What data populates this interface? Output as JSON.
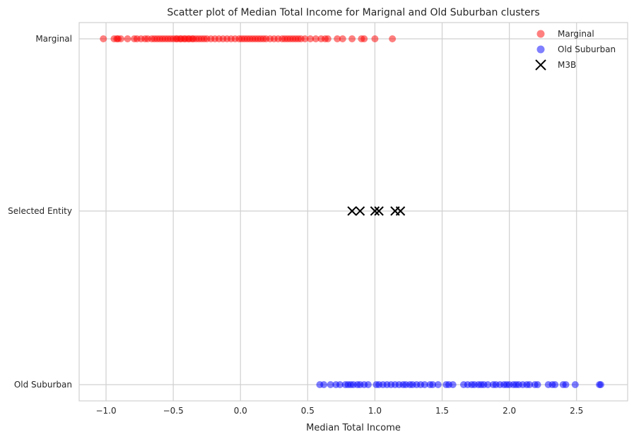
{
  "chart_data": {
    "type": "scatter",
    "title": "Scatter plot of Median Total Income for Marignal and Old Suburban clusters",
    "xlabel": "Median Total Income",
    "ylabel": "",
    "xlim": [
      -1.2,
      2.88
    ],
    "x_ticks": [
      -1.0,
      -0.5,
      0.0,
      0.5,
      1.0,
      1.5,
      2.0,
      2.5
    ],
    "x_tick_labels": [
      "−1.0",
      "−0.5",
      "0.0",
      "0.5",
      "1.0",
      "1.5",
      "2.0",
      "2.5"
    ],
    "y_categories": [
      "Marginal",
      "Selected Entity",
      "Old Suburban"
    ],
    "grid": true,
    "legend_position": "top-right",
    "series": [
      {
        "name": "Marginal",
        "color": "#ff0000",
        "marker": "circle",
        "alpha": 0.5,
        "y_category": "Marginal",
        "x": [
          -1.02,
          -0.94,
          -0.92,
          -0.91,
          -0.89,
          -0.84,
          -0.79,
          -0.77,
          -0.74,
          -0.71,
          -0.69,
          -0.66,
          -0.64,
          -0.62,
          -0.6,
          -0.58,
          -0.56,
          -0.54,
          -0.52,
          -0.5,
          -0.48,
          -0.47,
          -0.45,
          -0.44,
          -0.42,
          -0.41,
          -0.39,
          -0.38,
          -0.36,
          -0.35,
          -0.33,
          -0.31,
          -0.29,
          -0.27,
          -0.25,
          -0.22,
          -0.19,
          -0.16,
          -0.13,
          -0.1,
          -0.07,
          -0.04,
          -0.01,
          0.01,
          0.03,
          0.05,
          0.07,
          0.09,
          0.11,
          0.13,
          0.15,
          0.17,
          0.19,
          0.22,
          0.25,
          0.28,
          0.31,
          0.33,
          0.35,
          0.37,
          0.39,
          0.41,
          0.43,
          0.45,
          0.48,
          0.52,
          0.56,
          0.6,
          0.63,
          0.65,
          0.72,
          0.76,
          0.83,
          0.9,
          0.92,
          1.0,
          1.13
        ]
      },
      {
        "name": "Old Suburban",
        "color": "#0000ff",
        "marker": "circle",
        "alpha": 0.5,
        "y_category": "Old Suburban",
        "x": [
          0.59,
          0.62,
          0.67,
          0.71,
          0.74,
          0.78,
          0.8,
          0.82,
          0.84,
          0.87,
          0.89,
          0.92,
          0.95,
          1.01,
          1.03,
          1.06,
          1.09,
          1.12,
          1.15,
          1.18,
          1.21,
          1.23,
          1.26,
          1.28,
          1.31,
          1.34,
          1.37,
          1.41,
          1.43,
          1.47,
          1.53,
          1.55,
          1.58,
          1.66,
          1.69,
          1.72,
          1.74,
          1.77,
          1.79,
          1.81,
          1.84,
          1.88,
          1.9,
          1.93,
          1.96,
          1.98,
          2.0,
          2.03,
          2.05,
          2.07,
          2.1,
          2.13,
          2.15,
          2.19,
          2.21,
          2.29,
          2.32,
          2.34,
          2.4,
          2.42,
          2.49,
          2.67,
          2.68
        ]
      },
      {
        "name": "M3B",
        "color": "#000000",
        "marker": "x",
        "alpha": 1,
        "y_category": "Selected Entity",
        "x": [
          0.83,
          0.89,
          1.0,
          1.03,
          1.15,
          1.19
        ]
      }
    ]
  }
}
